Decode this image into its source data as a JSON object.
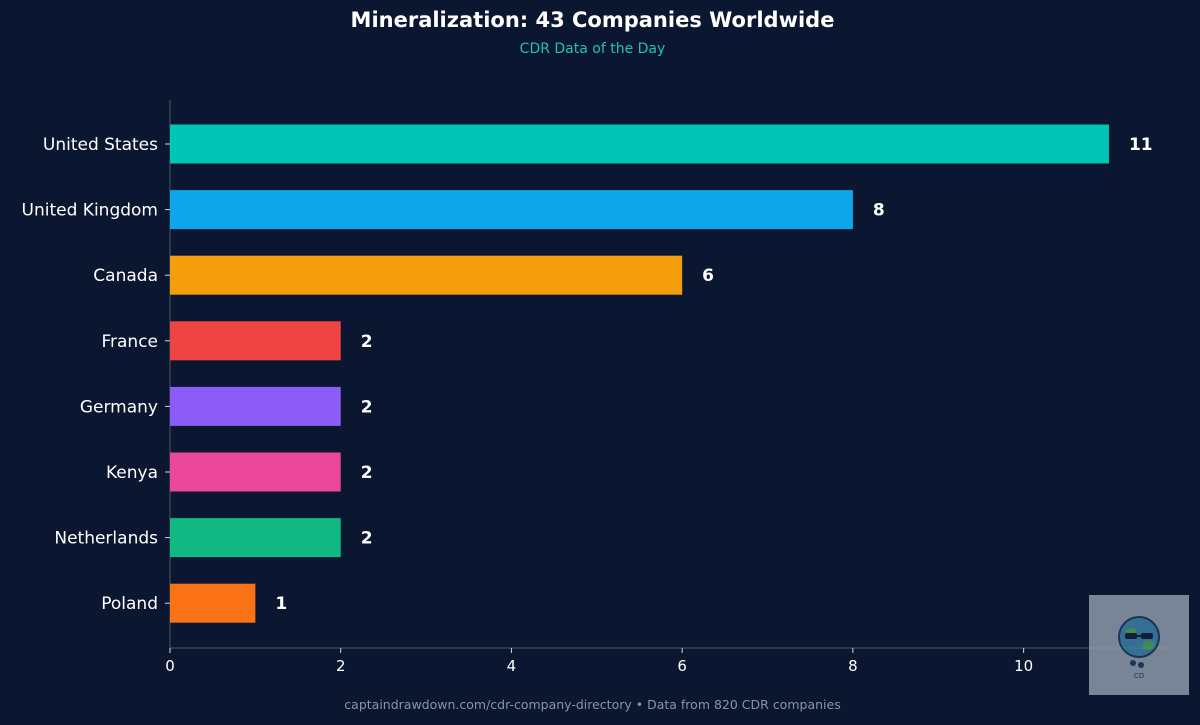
{
  "header": {
    "title": "Mineralization: 43 Companies Worldwide",
    "subtitle": "CDR Data of the Day"
  },
  "footer": {
    "source": "captaindrawdown.com/cdr-company-directory  •  Data from 820 CDR companies"
  },
  "logo": {
    "name": "captain-drawdown-logo-icon",
    "text": "CD"
  },
  "chart_data": {
    "type": "bar",
    "orientation": "horizontal",
    "title": "Mineralization: 43 Companies Worldwide",
    "subtitle": "CDR Data of the Day",
    "xlabel": "",
    "ylabel": "",
    "categories": [
      "United States",
      "United Kingdom",
      "Canada",
      "France",
      "Germany",
      "Kenya",
      "Netherlands",
      "Poland"
    ],
    "values": [
      11,
      8,
      6,
      2,
      2,
      2,
      2,
      1
    ],
    "colors": [
      "#00c4b4",
      "#0ea5e9",
      "#f59e0b",
      "#ef4444",
      "#8b5cf6",
      "#ec4899",
      "#10b981",
      "#f97316"
    ],
    "xlim": [
      0,
      11.75
    ],
    "xticks": [
      0,
      2,
      4,
      6,
      8,
      10
    ],
    "grid": false,
    "legend": "none",
    "data_labels": true
  }
}
